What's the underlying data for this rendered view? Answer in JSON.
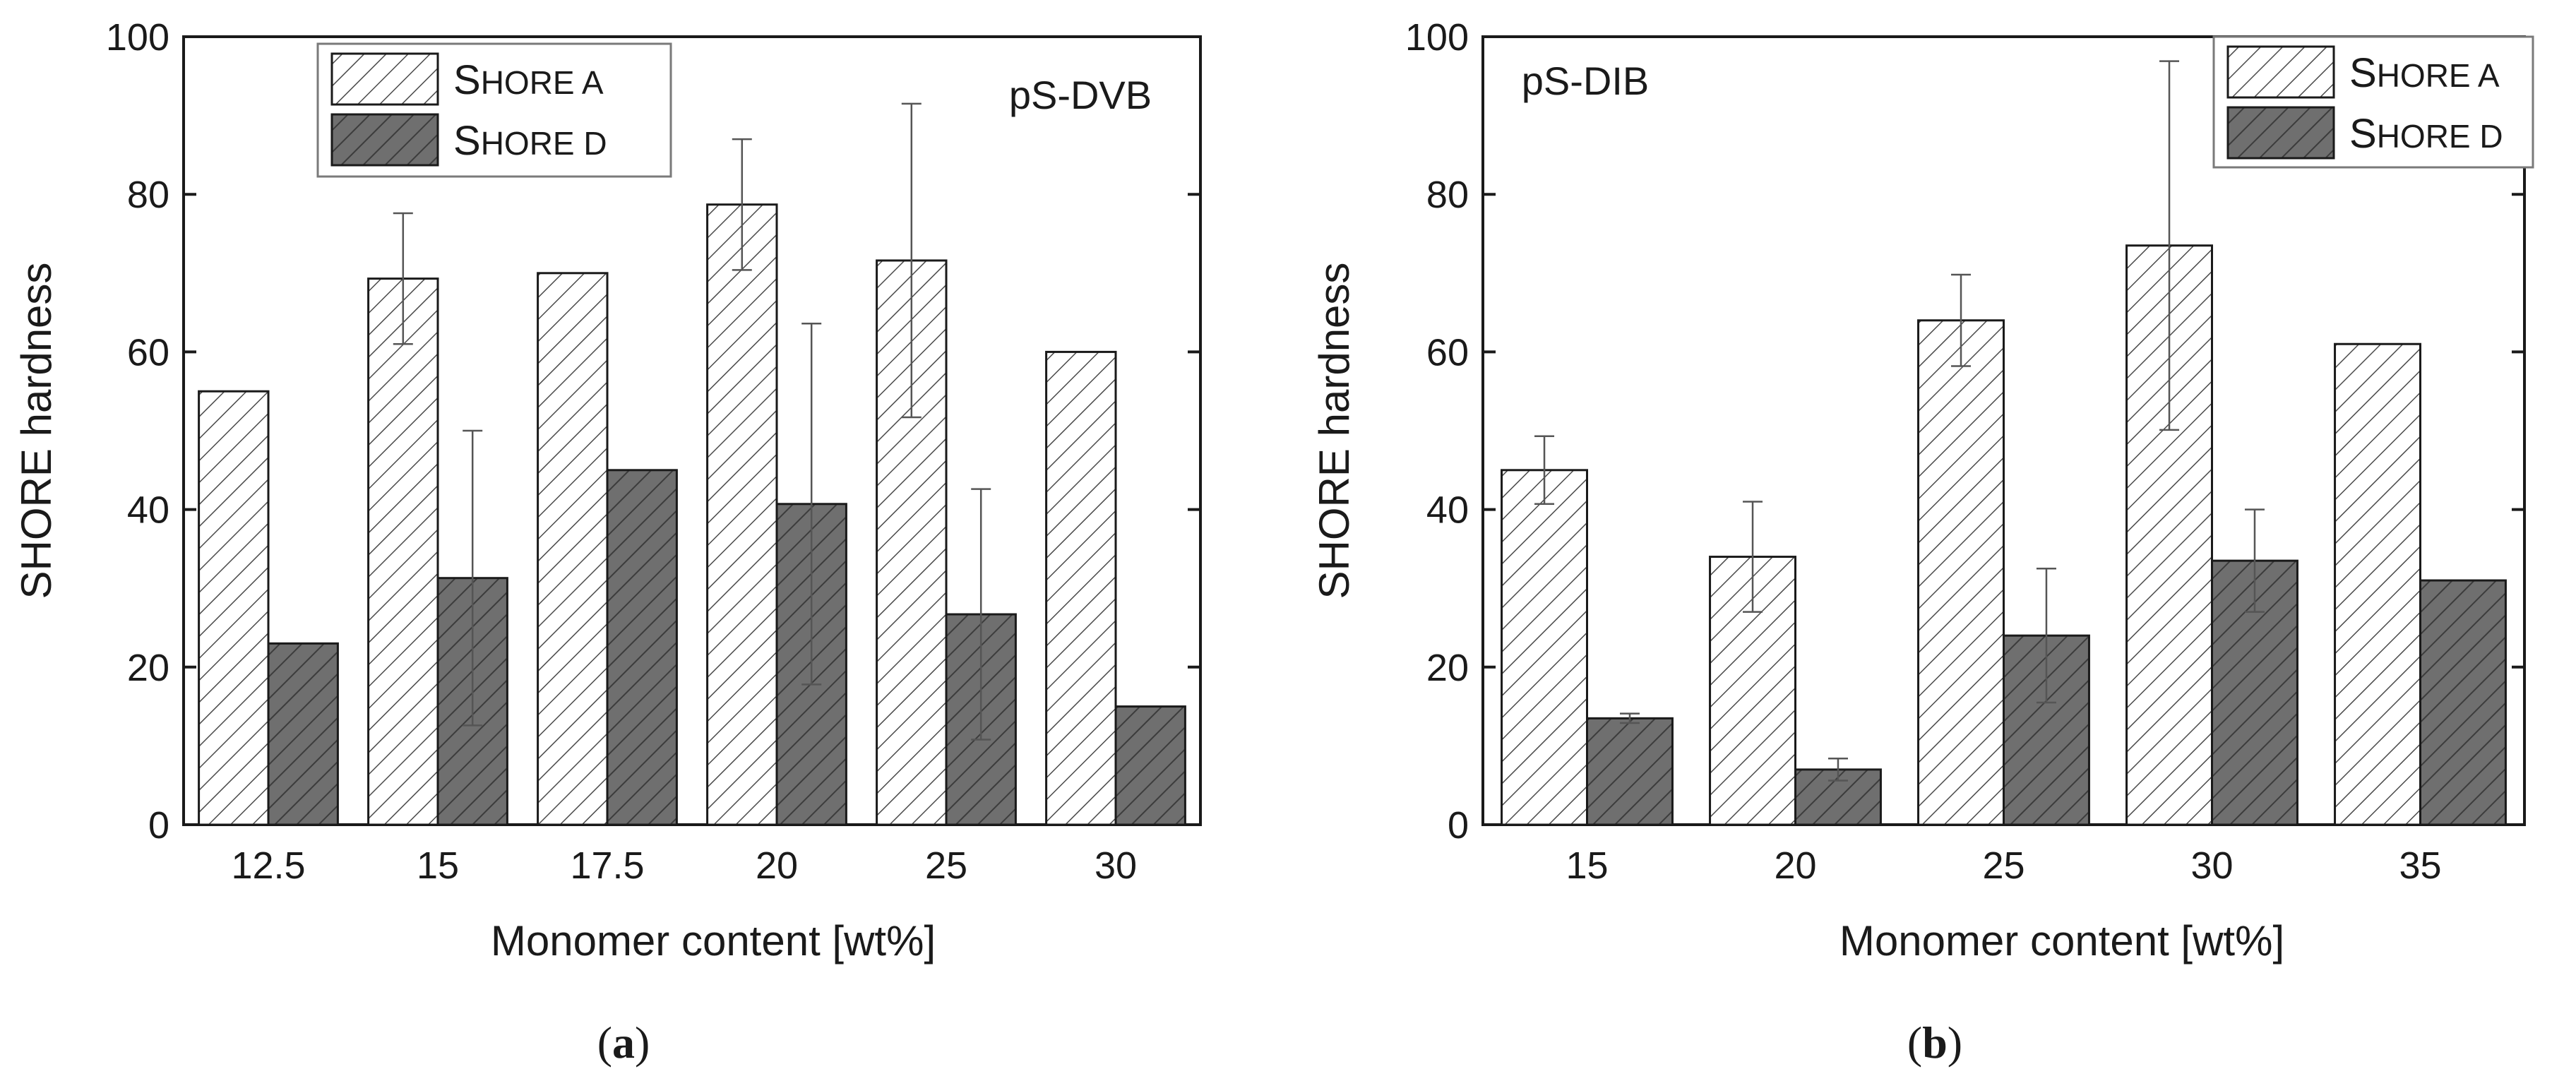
{
  "colors": {
    "shore_a_fill": "#ffffff",
    "shore_a_hatch": "#4a4a4a",
    "shore_d_fill": "#6f6f6f",
    "shore_d_hatch": "#3c3c3c",
    "axis": "#1a1a1a",
    "error_bar": "#555555"
  },
  "chart_data": [
    {
      "type": "bar",
      "panel_label": "(a)",
      "panel_letter": "a",
      "annotation": "pS-DVB",
      "annotation_position": "top-right",
      "xlabel": "Monomer content [wt%]",
      "ylabel": "SHORE hardness",
      "ylim": [
        0,
        100
      ],
      "yticks": [
        0,
        20,
        40,
        60,
        80,
        100
      ],
      "categories": [
        "12.5",
        "15",
        "17.5",
        "20",
        "25",
        "30"
      ],
      "legend_position": "top-center",
      "series": [
        {
          "name": "SHORE A",
          "name_cap": "S",
          "name_rest": "HORE A",
          "values": [
            55,
            69.3,
            70,
            78.7,
            71.6,
            60
          ],
          "errors": [
            0,
            8.3,
            0,
            8.3,
            19.9,
            0
          ]
        },
        {
          "name": "SHORE D",
          "name_cap": "S",
          "name_rest": "HORE D",
          "values": [
            23,
            31.3,
            45,
            40.7,
            26.7,
            15
          ],
          "errors": [
            0,
            18.7,
            0,
            22.9,
            15.9,
            0
          ]
        }
      ]
    },
    {
      "type": "bar",
      "panel_label": "(b)",
      "panel_letter": "b",
      "annotation": "pS-DIB",
      "annotation_position": "top-left",
      "xlabel": "Monomer content [wt%]",
      "ylabel": "SHORE hardness",
      "ylim": [
        0,
        100
      ],
      "yticks": [
        0,
        20,
        40,
        60,
        80,
        100
      ],
      "categories": [
        "15",
        "20",
        "25",
        "30",
        "35"
      ],
      "legend_position": "top-right",
      "series": [
        {
          "name": "SHORE A",
          "name_cap": "S",
          "name_rest": "HORE A",
          "values": [
            45,
            34,
            64,
            73.5,
            61
          ],
          "errors": [
            4.3,
            7,
            5.8,
            23.4,
            0
          ]
        },
        {
          "name": "SHORE D",
          "name_cap": "S",
          "name_rest": "HORE D",
          "values": [
            13.5,
            7,
            24,
            33.5,
            31
          ],
          "errors": [
            0.6,
            1.4,
            8.5,
            6.5,
            0
          ]
        }
      ]
    }
  ]
}
